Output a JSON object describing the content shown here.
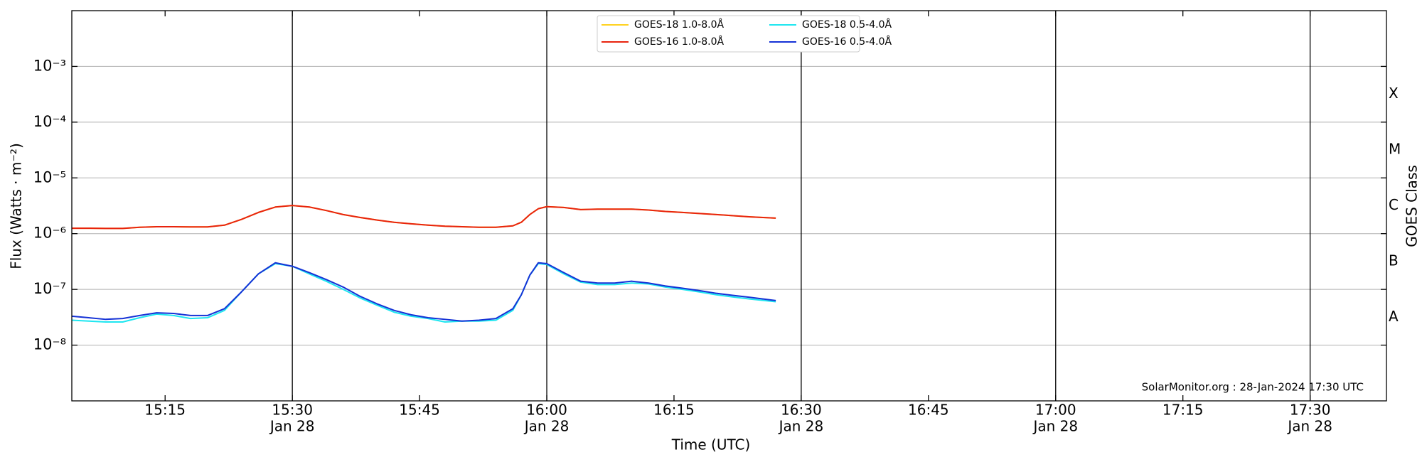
{
  "chart_data": {
    "type": "line",
    "x_label": "Time (UTC)",
    "y_label": "Flux (Watts · m⁻²)",
    "y2_label": "GOES Class",
    "annotation": "SolarMonitor.org : 28-Jan-2024 17:30 UTC",
    "log_y": true,
    "grid": "y",
    "legend": "top-center",
    "x": [
      "15:04",
      "15:06",
      "15:08",
      "15:10",
      "15:12",
      "15:14",
      "15:16",
      "15:18",
      "15:20",
      "15:22",
      "15:24",
      "15:26",
      "15:28",
      "15:30",
      "15:32",
      "15:34",
      "15:36",
      "15:38",
      "15:40",
      "15:42",
      "15:44",
      "15:46",
      "15:48",
      "15:50",
      "15:52",
      "15:54",
      "15:56",
      "15:57",
      "15:58",
      "15:59",
      "16:00",
      "16:02",
      "16:04",
      "16:06",
      "16:08",
      "16:10",
      "16:12",
      "16:14",
      "16:16",
      "16:18",
      "16:20",
      "16:22",
      "16:24",
      "16:27"
    ],
    "xlim": [
      "15:04",
      "17:39"
    ],
    "xticks": [
      "15:15",
      "15:30",
      "15:45",
      "16:00",
      "16:15",
      "16:30",
      "16:45",
      "17:00",
      "17:15",
      "17:30"
    ],
    "xtick_dates": [
      null,
      "Jan 28",
      null,
      "Jan 28",
      null,
      "Jan 28",
      null,
      "Jan 28",
      null,
      "Jan 28"
    ],
    "ylim": [
      1e-09,
      0.01
    ],
    "yticks": [
      {
        "value": 1e-08,
        "label": "10⁻⁸"
      },
      {
        "value": 1e-07,
        "label": "10⁻⁷"
      },
      {
        "value": 1e-06,
        "label": "10⁻⁶"
      },
      {
        "value": 1e-05,
        "label": "10⁻⁵"
      },
      {
        "value": 0.0001,
        "label": "10⁻⁴"
      },
      {
        "value": 0.001,
        "label": "10⁻³"
      }
    ],
    "y2lim": [
      1e-09,
      0.01
    ],
    "y2ticks": [
      {
        "value": 3.16e-08,
        "label": "A"
      },
      {
        "value": 3.16e-07,
        "label": "B"
      },
      {
        "value": 3.16e-06,
        "label": "C"
      },
      {
        "value": 3.16e-05,
        "label": "M"
      },
      {
        "value": 0.000316,
        "label": "X"
      }
    ],
    "series": [
      {
        "name": "GOES-18 1.0-8.0Å",
        "color": "#ffd21f",
        "values": [
          1.25e-06,
          1.25e-06,
          1.24e-06,
          1.24e-06,
          1.3e-06,
          1.33e-06,
          1.33e-06,
          1.32e-06,
          1.32e-06,
          1.42e-06,
          1.8e-06,
          2.4e-06,
          3e-06,
          3.2e-06,
          3e-06,
          2.6e-06,
          2.2e-06,
          1.95e-06,
          1.75e-06,
          1.6e-06,
          1.5e-06,
          1.42e-06,
          1.36e-06,
          1.33e-06,
          1.3e-06,
          1.3e-06,
          1.38e-06,
          1.6e-06,
          2.2e-06,
          2.8e-06,
          3.05e-06,
          2.95e-06,
          2.7e-06,
          2.75e-06,
          2.75e-06,
          2.75e-06,
          2.65e-06,
          2.5e-06,
          2.4e-06,
          2.3e-06,
          2.2e-06,
          2.1e-06,
          2e-06,
          1.9e-06
        ]
      },
      {
        "name": "GOES-16 1.0-8.0Å",
        "color": "#e8230e",
        "values": [
          1.25e-06,
          1.25e-06,
          1.24e-06,
          1.24e-06,
          1.3e-06,
          1.33e-06,
          1.33e-06,
          1.32e-06,
          1.32e-06,
          1.42e-06,
          1.8e-06,
          2.4e-06,
          3e-06,
          3.2e-06,
          3e-06,
          2.6e-06,
          2.2e-06,
          1.95e-06,
          1.75e-06,
          1.6e-06,
          1.5e-06,
          1.42e-06,
          1.36e-06,
          1.33e-06,
          1.3e-06,
          1.3e-06,
          1.38e-06,
          1.6e-06,
          2.2e-06,
          2.8e-06,
          3.05e-06,
          2.95e-06,
          2.7e-06,
          2.75e-06,
          2.75e-06,
          2.75e-06,
          2.65e-06,
          2.5e-06,
          2.4e-06,
          2.3e-06,
          2.2e-06,
          2.1e-06,
          2e-06,
          1.9e-06
        ]
      },
      {
        "name": "GOES-18 0.5-4.0Å",
        "color": "#1ee6f0",
        "values": [
          2.8e-08,
          2.7e-08,
          2.6e-08,
          2.6e-08,
          3.1e-08,
          3.6e-08,
          3.4e-08,
          3e-08,
          3.1e-08,
          4.2e-08,
          9e-08,
          1.9e-07,
          2.9e-07,
          2.6e-07,
          1.9e-07,
          1.4e-07,
          1e-07,
          7e-08,
          5.2e-08,
          3.9e-08,
          3.3e-08,
          3e-08,
          2.6e-08,
          2.7e-08,
          2.7e-08,
          2.8e-08,
          4.2e-08,
          8e-08,
          1.8e-07,
          2.9e-07,
          2.8e-07,
          1.9e-07,
          1.35e-07,
          1.22e-07,
          1.22e-07,
          1.3e-07,
          1.25e-07,
          1.1e-07,
          1e-07,
          9e-08,
          8e-08,
          7.3e-08,
          6.7e-08,
          6e-08
        ]
      },
      {
        "name": "GOES-16 0.5-4.0Å",
        "color": "#1532d6",
        "values": [
          3.3e-08,
          3.1e-08,
          2.9e-08,
          3e-08,
          3.4e-08,
          3.8e-08,
          3.7e-08,
          3.4e-08,
          3.4e-08,
          4.5e-08,
          9e-08,
          1.9e-07,
          3e-07,
          2.6e-07,
          2e-07,
          1.5e-07,
          1.1e-07,
          7.5e-08,
          5.5e-08,
          4.2e-08,
          3.5e-08,
          3.1e-08,
          2.9e-08,
          2.7e-08,
          2.8e-08,
          3e-08,
          4.5e-08,
          8e-08,
          1.8e-07,
          3e-07,
          2.9e-07,
          2e-07,
          1.4e-07,
          1.3e-07,
          1.3e-07,
          1.4e-07,
          1.3e-07,
          1.15e-07,
          1.05e-07,
          9.5e-08,
          8.5e-08,
          7.8e-08,
          7.2e-08,
          6.3e-08
        ]
      }
    ]
  }
}
